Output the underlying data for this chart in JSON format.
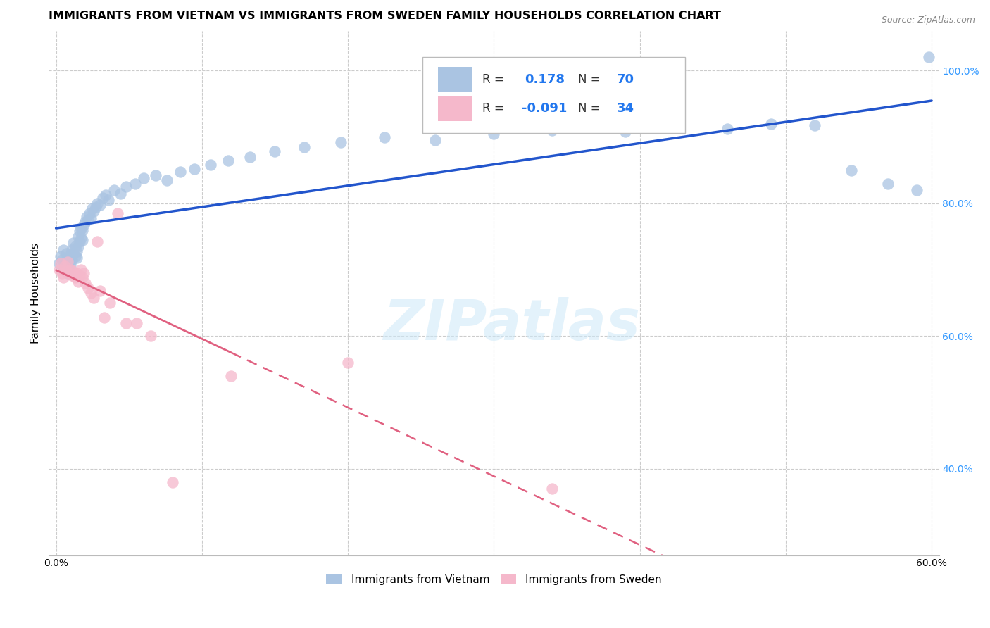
{
  "title": "IMMIGRANTS FROM VIETNAM VS IMMIGRANTS FROM SWEDEN FAMILY HOUSEHOLDS CORRELATION CHART",
  "source": "Source: ZipAtlas.com",
  "ylabel": "Family Households",
  "xlim": [
    -0.005,
    0.605
  ],
  "ylim": [
    0.27,
    1.06
  ],
  "y_ticks": [
    0.4,
    0.6,
    0.8,
    1.0
  ],
  "y_tick_labels": [
    "40.0%",
    "60.0%",
    "80.0%",
    "100.0%"
  ],
  "x_ticks": [
    0.0,
    0.1,
    0.2,
    0.3,
    0.4,
    0.5,
    0.6
  ],
  "legend_R_vietnam": "0.178",
  "legend_N_vietnam": "70",
  "legend_R_sweden": "-0.091",
  "legend_N_sweden": "34",
  "vietnam_color": "#aac4e2",
  "sweden_color": "#f5b8cb",
  "vietnam_line_color": "#2255cc",
  "sweden_line_color": "#e06080",
  "watermark": "ZIPatlas",
  "title_fontsize": 11.5,
  "axis_label_fontsize": 11,
  "tick_fontsize": 10,
  "vietnam_scatter_x": [
    0.002,
    0.003,
    0.004,
    0.005,
    0.005,
    0.006,
    0.007,
    0.008,
    0.008,
    0.009,
    0.01,
    0.01,
    0.011,
    0.011,
    0.012,
    0.012,
    0.013,
    0.013,
    0.014,
    0.014,
    0.015,
    0.015,
    0.016,
    0.016,
    0.017,
    0.017,
    0.018,
    0.018,
    0.019,
    0.02,
    0.021,
    0.022,
    0.023,
    0.024,
    0.025,
    0.026,
    0.027,
    0.028,
    0.03,
    0.032,
    0.034,
    0.036,
    0.04,
    0.044,
    0.048,
    0.054,
    0.06,
    0.068,
    0.076,
    0.085,
    0.095,
    0.106,
    0.118,
    0.133,
    0.15,
    0.17,
    0.195,
    0.225,
    0.26,
    0.3,
    0.34,
    0.39,
    0.42,
    0.46,
    0.49,
    0.52,
    0.545,
    0.57,
    0.59,
    0.598
  ],
  "vietnam_scatter_y": [
    0.71,
    0.72,
    0.715,
    0.7,
    0.73,
    0.705,
    0.725,
    0.695,
    0.718,
    0.712,
    0.722,
    0.708,
    0.73,
    0.715,
    0.725,
    0.74,
    0.72,
    0.735,
    0.718,
    0.728,
    0.735,
    0.75,
    0.742,
    0.758,
    0.748,
    0.762,
    0.745,
    0.76,
    0.768,
    0.772,
    0.78,
    0.775,
    0.785,
    0.778,
    0.792,
    0.788,
    0.795,
    0.8,
    0.798,
    0.808,
    0.812,
    0.805,
    0.82,
    0.815,
    0.825,
    0.83,
    0.838,
    0.842,
    0.835,
    0.848,
    0.852,
    0.858,
    0.865,
    0.87,
    0.878,
    0.885,
    0.892,
    0.9,
    0.895,
    0.905,
    0.91,
    0.908,
    0.916,
    0.912,
    0.92,
    0.918,
    0.85,
    0.83,
    0.82,
    1.02
  ],
  "sweden_scatter_x": [
    0.002,
    0.003,
    0.004,
    0.005,
    0.006,
    0.007,
    0.008,
    0.009,
    0.01,
    0.011,
    0.012,
    0.013,
    0.014,
    0.015,
    0.016,
    0.017,
    0.018,
    0.019,
    0.02,
    0.022,
    0.024,
    0.026,
    0.028,
    0.03,
    0.033,
    0.037,
    0.042,
    0.048,
    0.055,
    0.065,
    0.08,
    0.12,
    0.2,
    0.34
  ],
  "sweden_scatter_y": [
    0.7,
    0.71,
    0.695,
    0.688,
    0.705,
    0.698,
    0.712,
    0.695,
    0.7,
    0.692,
    0.698,
    0.688,
    0.695,
    0.682,
    0.692,
    0.7,
    0.688,
    0.695,
    0.68,
    0.672,
    0.665,
    0.658,
    0.742,
    0.668,
    0.628,
    0.65,
    0.785,
    0.62,
    0.62,
    0.6,
    0.38,
    0.54,
    0.56,
    0.37
  ],
  "sweden_line_solid_end": 0.12,
  "sweden_line_dashed_start": 0.12
}
